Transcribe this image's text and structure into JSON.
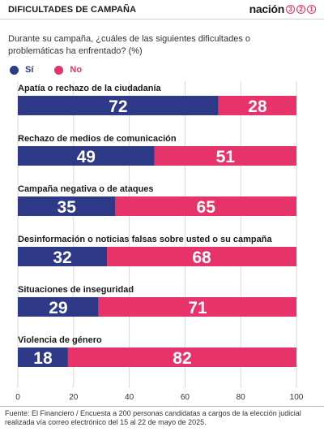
{
  "header": {
    "title": "DIFICULTADES DE CAMPAÑA",
    "brand_word": "nación",
    "brand_digits": [
      "3",
      "2",
      "1"
    ],
    "brand_color": "#e8325a"
  },
  "question": "Durante su campaña, ¿cuáles de las siguientes dificultades o problemáticas ha enfrentado?  (%)",
  "legend": [
    {
      "label": "Sí",
      "color": "#2e3a87"
    },
    {
      "label": "No",
      "color": "#e8326a"
    }
  ],
  "chart_data": {
    "type": "bar",
    "orientation": "horizontal-stacked-100",
    "categories": [
      "Apatía o rechazo de la ciudadanía",
      "Rechazo de medios de comunicación",
      "Campaña negativa o de ataques",
      "Desinformación o noticias falsas sobre usted o su campaña",
      "Situaciones de inseguridad",
      "Violencia de género"
    ],
    "series": [
      {
        "name": "Sí",
        "color": "#2e3a87",
        "values": [
          72,
          49,
          35,
          32,
          29,
          18
        ]
      },
      {
        "name": "No",
        "color": "#e8326a",
        "values": [
          28,
          51,
          65,
          68,
          71,
          82
        ]
      }
    ],
    "xlim": [
      0,
      100
    ],
    "xticks": [
      0,
      20,
      40,
      60,
      80,
      100
    ],
    "data_labels": true,
    "grid": true
  },
  "source": "Fuente: El Financiero / Encuesta a 200 personas candidatas a cargos de la elección judicial realizada vía correo electrónico del 15 al 22 de mayo de 2025."
}
